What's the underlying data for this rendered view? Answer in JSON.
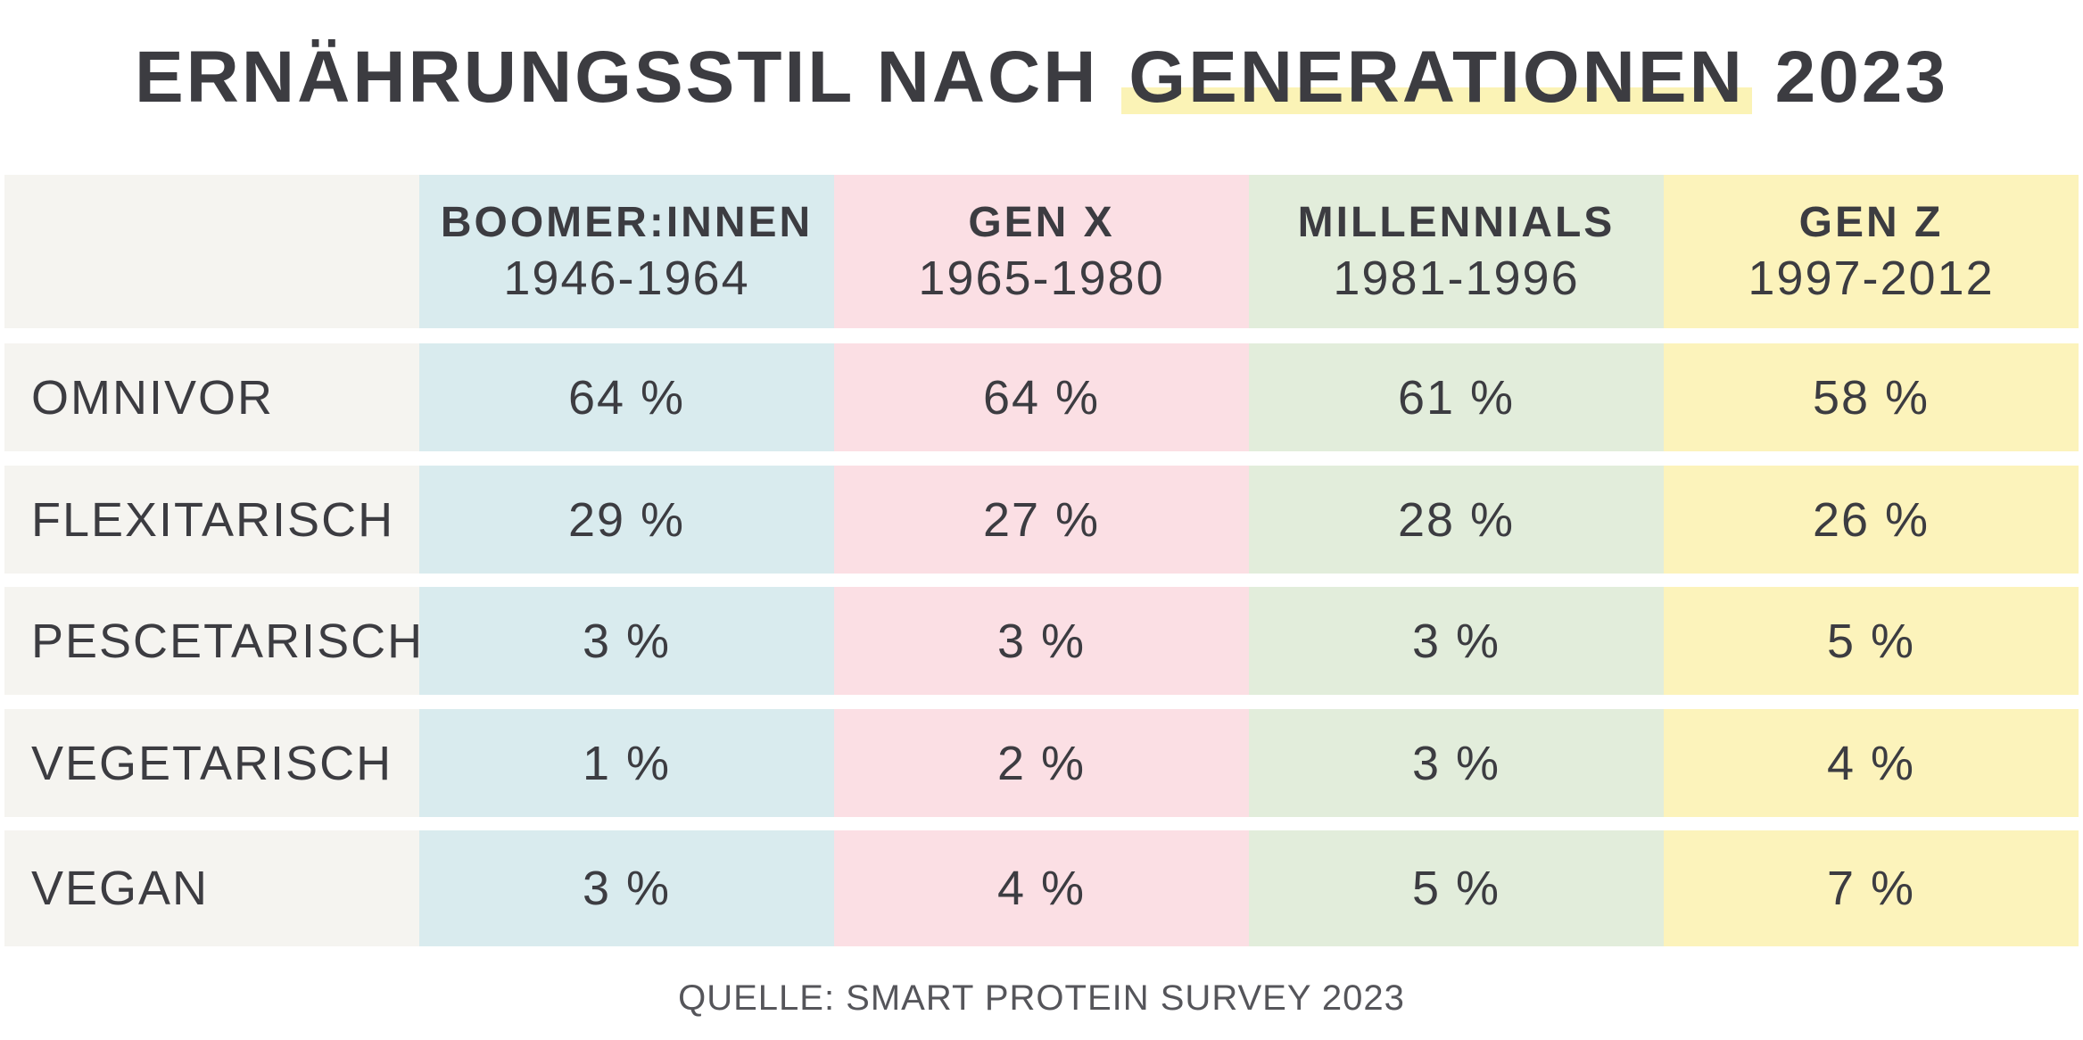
{
  "title": {
    "before": "ERNÄHRUNGSSTIL NACH ",
    "highlight": "GENERATIONEN",
    "after": " 2023"
  },
  "source": "QUELLE: SMART PROTEIN SURVEY 2023",
  "colors": {
    "boomer": "#d9ebee",
    "genx": "#fbdfe4",
    "millennials": "#e2eddb",
    "genz": "#fcf3bb",
    "label_column": "#f5f4f0",
    "title_highlight": "#fbf3b6",
    "text": "#3c3c41"
  },
  "chart_data": {
    "type": "table",
    "title": "ERNÄHRUNGSSTIL NACH GENERATIONEN 2023",
    "columns": [
      {
        "name": "BOOMER:INNEN",
        "years": "1946-1964"
      },
      {
        "name": "GEN X",
        "years": "1965-1980"
      },
      {
        "name": "MILLENNIALS",
        "years": "1981-1996"
      },
      {
        "name": "GEN Z",
        "years": "1997-2012"
      }
    ],
    "rows": [
      {
        "label": "OMNIVOR",
        "values": [
          "64 %",
          "64 %",
          "61 %",
          "58 %"
        ]
      },
      {
        "label": "FLEXITARISCH",
        "values": [
          "29 %",
          "27 %",
          "28 %",
          "26 %"
        ]
      },
      {
        "label": "PESCETARISCH",
        "values": [
          "3 %",
          "3 %",
          "3 %",
          "5 %"
        ]
      },
      {
        "label": "VEGETARISCH",
        "values": [
          "1 %",
          "2 %",
          "3 %",
          "4 %"
        ]
      },
      {
        "label": "VEGAN",
        "values": [
          "3 %",
          "4 %",
          "5 %",
          "7 %"
        ]
      }
    ],
    "unit": "%"
  }
}
